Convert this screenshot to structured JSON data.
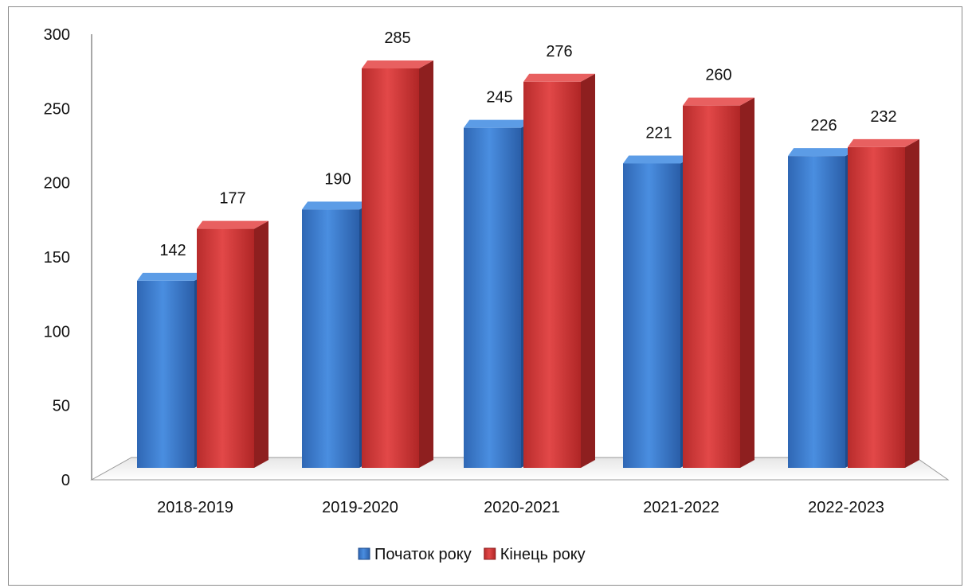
{
  "chart_data": {
    "type": "bar",
    "title": "",
    "xlabel": "",
    "ylabel": "",
    "categories": [
      "2018-2019",
      "2019-2020",
      "2020-2021",
      "2021-2022",
      "2022-2023"
    ],
    "series": [
      {
        "name": "Початок року",
        "values": [
          142,
          190,
          245,
          221,
          226
        ],
        "color": "#3f7fd0"
      },
      {
        "name": "Кінець року",
        "values": [
          177,
          285,
          276,
          260,
          232
        ],
        "color": "#d83a3a"
      }
    ],
    "ylim": [
      0,
      300
    ],
    "yticks": [
      0,
      50,
      100,
      150,
      200,
      250,
      300
    ],
    "grid": false,
    "legend": "bottom",
    "style": "3d-column"
  }
}
